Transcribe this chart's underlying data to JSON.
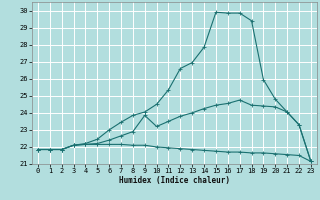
{
  "xlabel": "Humidex (Indice chaleur)",
  "bg_color": "#b2dede",
  "grid_color": "#ffffff",
  "line_color": "#1a7070",
  "xlim": [
    -0.5,
    23.5
  ],
  "ylim": [
    21.0,
    30.5
  ],
  "xticks": [
    0,
    1,
    2,
    3,
    4,
    5,
    6,
    7,
    8,
    9,
    10,
    11,
    12,
    13,
    14,
    15,
    16,
    17,
    18,
    19,
    20,
    21,
    22,
    23
  ],
  "yticks": [
    21,
    22,
    23,
    24,
    25,
    26,
    27,
    28,
    29,
    30
  ],
  "line1_x": [
    0,
    1,
    2,
    3,
    4,
    5,
    6,
    7,
    8,
    9,
    10,
    11,
    12,
    13,
    14,
    15,
    16,
    17,
    18,
    19,
    20,
    21,
    22,
    23
  ],
  "line1_y": [
    21.85,
    21.85,
    21.85,
    22.1,
    22.15,
    22.15,
    22.15,
    22.15,
    22.1,
    22.1,
    22.0,
    21.95,
    21.9,
    21.85,
    21.8,
    21.75,
    21.7,
    21.7,
    21.65,
    21.65,
    21.6,
    21.55,
    21.5,
    21.15
  ],
  "line2_x": [
    0,
    1,
    2,
    3,
    4,
    5,
    6,
    7,
    8,
    9,
    10,
    11,
    12,
    13,
    14,
    15,
    16,
    17,
    18,
    19,
    20,
    21,
    22,
    23
  ],
  "line2_y": [
    21.85,
    21.85,
    21.85,
    22.1,
    22.15,
    22.2,
    22.4,
    22.65,
    22.9,
    23.85,
    23.2,
    23.5,
    23.8,
    24.0,
    24.25,
    24.45,
    24.55,
    24.75,
    24.45,
    24.4,
    24.35,
    24.05,
    23.3,
    21.15
  ],
  "line3_x": [
    0,
    1,
    2,
    3,
    4,
    5,
    6,
    7,
    8,
    9,
    10,
    11,
    12,
    13,
    14,
    15,
    16,
    17,
    18,
    19,
    20,
    21,
    22,
    23
  ],
  "line3_y": [
    21.85,
    21.85,
    21.85,
    22.1,
    22.2,
    22.45,
    23.0,
    23.45,
    23.85,
    24.05,
    24.5,
    25.35,
    26.6,
    26.95,
    27.85,
    29.9,
    29.85,
    29.85,
    29.4,
    25.95,
    24.8,
    24.05,
    23.3,
    21.15
  ]
}
